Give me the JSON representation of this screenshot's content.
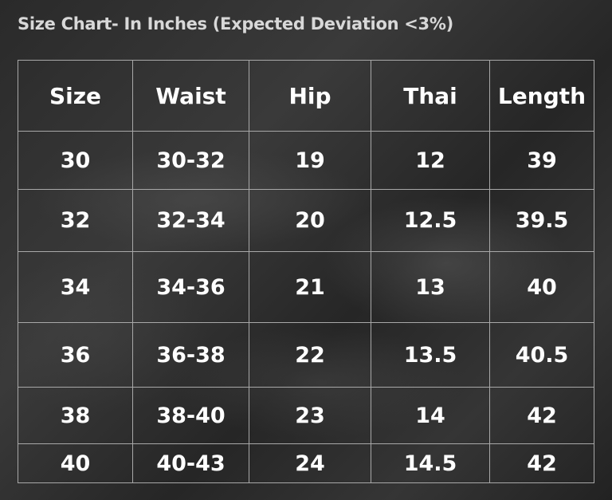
{
  "title": "Size Chart- In Inches (Expected Deviation <3%)",
  "table": {
    "header": [
      "Size",
      "Waist",
      "Hip",
      "Thai",
      "Length"
    ],
    "rows": [
      [
        "30",
        "30-32",
        "19",
        "12",
        "39"
      ],
      [
        "32",
        "32-34",
        "20",
        "12.5",
        "39.5"
      ],
      [
        "34",
        "34-36",
        "21",
        "13",
        "40"
      ],
      [
        "36",
        "36-38",
        "22",
        "13.5",
        "40.5"
      ],
      [
        "38",
        "38-40",
        "23",
        "14",
        "42"
      ],
      [
        "40",
        "40-43",
        "24",
        "14.5",
        "42"
      ]
    ]
  }
}
